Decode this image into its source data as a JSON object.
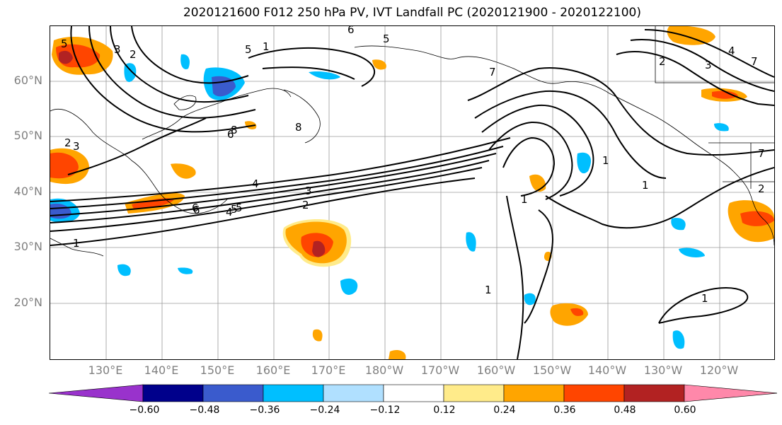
{
  "title": "2020121600 F012 250 hPa PV, IVT Landfall PC (2020121900 - 2020122100)",
  "lat_labels": [
    "60°N",
    "50°N",
    "40°N",
    "30°N",
    "20°N"
  ],
  "lon_labels": [
    "130°E",
    "140°E",
    "150°E",
    "160°E",
    "170°E",
    "180°W",
    "170°W",
    "160°W",
    "150°W",
    "140°W",
    "130°W",
    "120°W"
  ],
  "colorbar": {
    "colors": [
      "#9932cc",
      "#00008b",
      "#3a5bcd",
      "#00bfff",
      "#b0e0ff",
      "#ffffff",
      "#ffeb8a",
      "#ffa500",
      "#ff4500",
      "#b22222",
      "#ff88aa"
    ],
    "tick_labels": [
      "−0.60",
      "−0.48",
      "−0.36",
      "−0.24",
      "−0.12",
      "0.12",
      "0.24",
      "0.36",
      "0.48",
      "0.60"
    ]
  },
  "contour_labels": [
    "1",
    "2",
    "3",
    "4",
    "5",
    "6",
    "7",
    "1",
    "2",
    "3",
    "4",
    "5",
    "6",
    "7",
    "1",
    "1",
    "1",
    "1",
    "6",
    "4",
    "5",
    "2",
    "3",
    "1",
    "5",
    "6",
    "8",
    "8",
    "3",
    "2",
    "5",
    "7",
    "2"
  ]
}
